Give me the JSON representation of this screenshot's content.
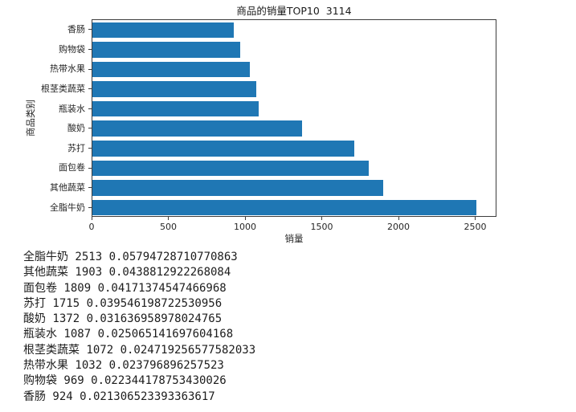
{
  "chart_data": {
    "type": "bar",
    "orientation": "horizontal",
    "title": "商品的销量TOP10  3114",
    "xlabel": "销量",
    "ylabel": "商品类别",
    "categories_top_to_bottom": [
      "香肠",
      "购物袋",
      "热带水果",
      "根茎类蔬菜",
      "瓶装水",
      "酸奶",
      "苏打",
      "面包卷",
      "其他蔬菜",
      "全脂牛奶"
    ],
    "values_top_to_bottom": [
      924,
      969,
      1032,
      1072,
      1087,
      1372,
      1715,
      1809,
      1903,
      2513
    ],
    "xticks": [
      0,
      500,
      1000,
      1500,
      2000,
      2500
    ],
    "xlim": [
      0,
      2639
    ],
    "grid": false,
    "legend": "none",
    "bar_color": "#1f77b4"
  },
  "console": {
    "lines": [
      {
        "name": "全脂牛奶",
        "count": "2513",
        "share": "0.05794728710770863"
      },
      {
        "name": "其他蔬菜",
        "count": "1903",
        "share": "0.0438812922268084"
      },
      {
        "name": "面包卷",
        "count": "1809",
        "share": "0.04171374547466968"
      },
      {
        "name": "苏打",
        "count": "1715",
        "share": "0.039546198722530956"
      },
      {
        "name": "酸奶",
        "count": "1372",
        "share": "0.031636958978024765"
      },
      {
        "name": "瓶装水",
        "count": "1087",
        "share": "0.025065141697604168"
      },
      {
        "name": "根茎类蔬菜",
        "count": "1072",
        "share": "0.024719256577582033"
      },
      {
        "name": "热带水果",
        "count": "1032",
        "share": "0.023796896257523"
      },
      {
        "name": "购物袋",
        "count": "969",
        "share": "0.022344178753430026"
      },
      {
        "name": "香肠",
        "count": "924",
        "share": "0.021306523393363617"
      }
    ]
  }
}
